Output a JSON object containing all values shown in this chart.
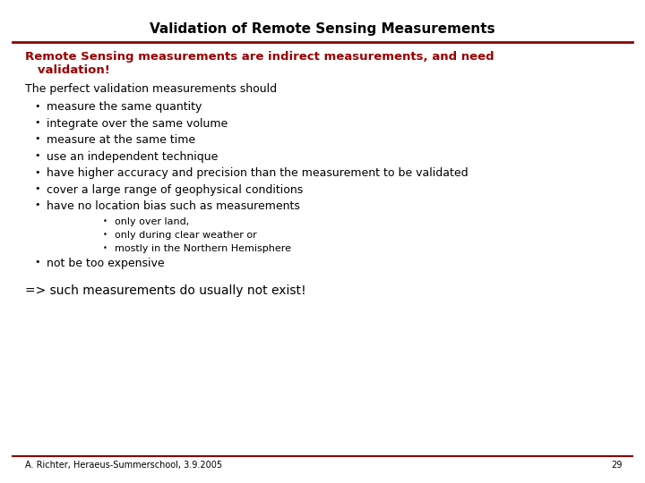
{
  "title": "Validation of Remote Sensing Measurements",
  "title_fontsize": 11,
  "title_fontweight": "bold",
  "background_color": "#ffffff",
  "title_color": "#000000",
  "line_color": "#8B0000",
  "red_text_line1": "Remote Sensing measurements are indirect measurements, and need",
  "red_text_line2": "   validation!",
  "red_color": "#990000",
  "red_fontsize": 9.5,
  "body_intro": "The perfect validation measurements should",
  "body_fontsize": 9,
  "sub_fontsize": 8,
  "bullet_char": "•",
  "bullets": [
    "measure the same quantity",
    "integrate over the same volume",
    "measure at the same time",
    "use an independent technique",
    "have higher accuracy and precision than the measurement to be validated",
    "cover a large range of geophysical conditions",
    "have no location bias such as measurements"
  ],
  "sub_bullets": [
    "only over land,",
    "only during clear weather or",
    "mostly in the Northern Hemisphere"
  ],
  "last_bullet": "not be too expensive",
  "conclusion": "=> such measurements do usually not exist!",
  "footer": "A. Richter, Heraeus-Summerschool, 3.9.2005",
  "page_num": "29",
  "footer_fontsize": 7,
  "conclusion_fontsize": 10
}
